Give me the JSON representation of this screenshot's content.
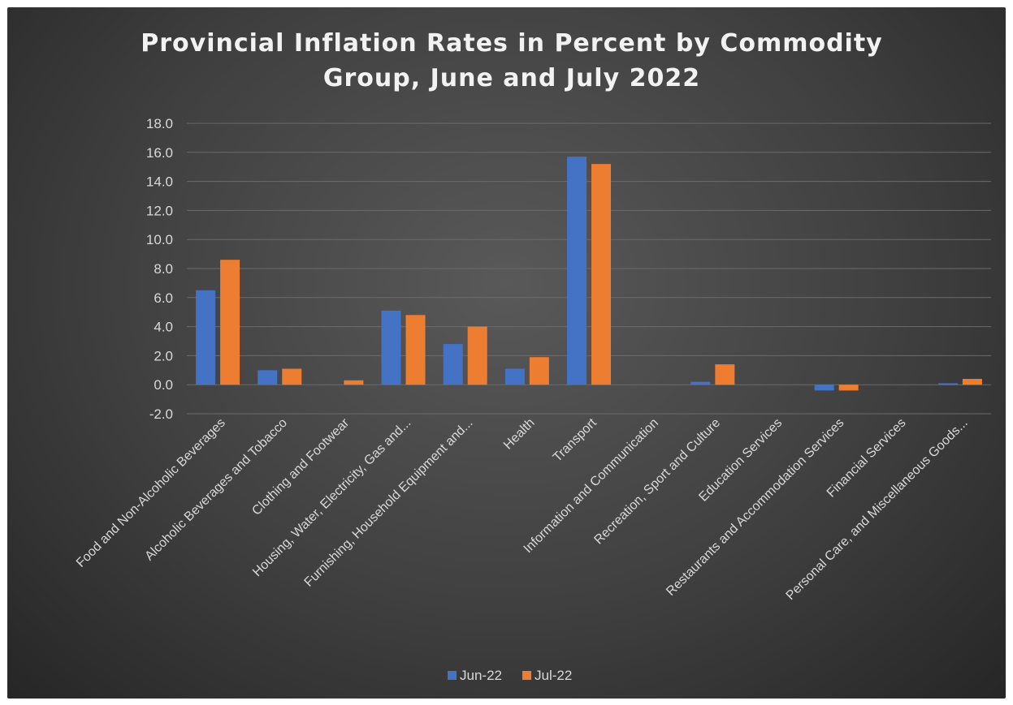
{
  "chart_data": {
    "type": "bar",
    "title_lines": [
      "Provincial Inflation Rates in Percent by Commodity",
      "Group, June and July 2022"
    ],
    "xlabel": "",
    "ylabel": "",
    "ylim": [
      -2,
      18
    ],
    "yticks": [
      "-2.0",
      "0.0",
      "2.0",
      "4.0",
      "6.0",
      "8.0",
      "10.0",
      "12.0",
      "14.0",
      "16.0",
      "18.0"
    ],
    "grid": true,
    "legend_position": "bottom",
    "categories": [
      "Food and Non-Alcoholic Beverages",
      "Alcoholic Beverages and Tobacco",
      "Clothing and Footwear",
      "Housing, Water, Electricity, Gas and...",
      "Furnishing, Household Equipment and...",
      "Health",
      "Transport",
      "Information and Communication",
      "Recreation, Sport and Culture",
      "Education Services",
      "Restaurants and Accommodation Services",
      "Financial Services",
      "Personal Care, and Miscellaneous Goods..."
    ],
    "series": [
      {
        "name": "Jun-22",
        "color": "#4472c4",
        "values": [
          6.5,
          1.0,
          0.0,
          5.1,
          2.8,
          1.1,
          15.7,
          0.0,
          0.2,
          0.0,
          -0.4,
          0.0,
          0.1
        ]
      },
      {
        "name": "Jul-22",
        "color": "#ed7d31",
        "values": [
          8.6,
          1.1,
          0.3,
          4.8,
          4.0,
          1.9,
          15.2,
          0.0,
          1.4,
          0.0,
          -0.4,
          0.0,
          0.4
        ]
      }
    ]
  }
}
